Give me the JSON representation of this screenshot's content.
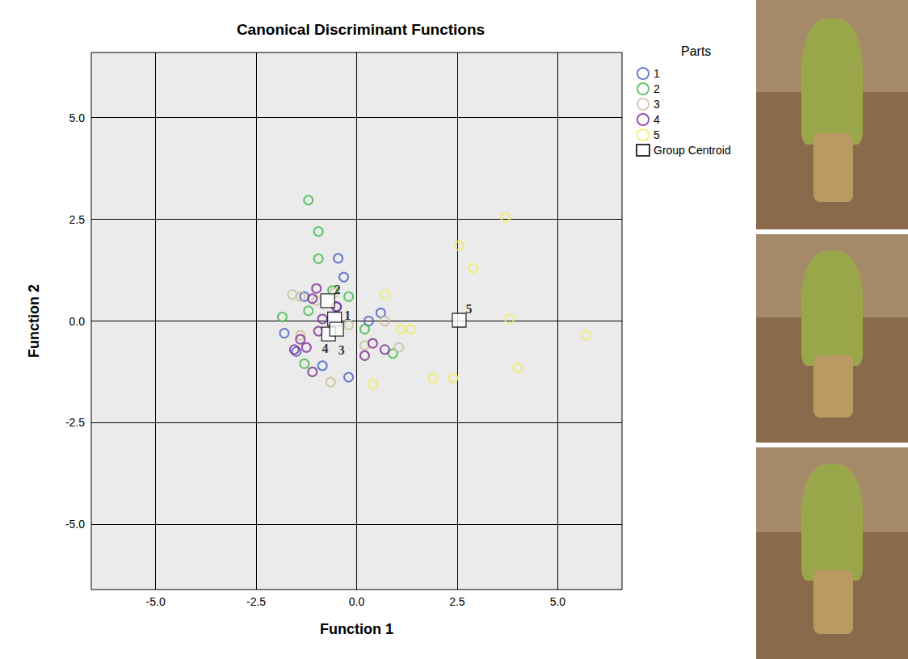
{
  "chart_data": {
    "type": "scatter",
    "title": "Canonical Discriminant Functions",
    "x_label": "Function 1",
    "y_label": "Function 2",
    "legend_title": "Parts",
    "legend": "right",
    "grid": true,
    "xlim": [
      -6.6,
      6.6
    ],
    "ylim": [
      -6.6,
      6.6
    ],
    "xticks": [
      {
        "value": -5,
        "label": "-5.0"
      },
      {
        "value": -2.5,
        "label": "-2.5"
      },
      {
        "value": 0,
        "label": "0.0"
      },
      {
        "value": 2.5,
        "label": "2.5"
      },
      {
        "value": 5,
        "label": "5.0"
      }
    ],
    "yticks": [
      {
        "value": -5,
        "label": "-5.0"
      },
      {
        "value": -2.5,
        "label": "-2.5"
      },
      {
        "value": 0,
        "label": "0.0"
      },
      {
        "value": 2.5,
        "label": "2.5"
      },
      {
        "value": 5,
        "label": "5.0"
      }
    ],
    "series": [
      {
        "name": "1",
        "color": "#4a5fc1",
        "marker": "open_circle",
        "x": [
          -0.46,
          -0.32,
          -1.3,
          -1.8,
          -0.85,
          -0.2,
          0.3,
          0.6,
          -0.5,
          -1.5
        ],
        "y": [
          1.54,
          1.08,
          0.6,
          -0.3,
          -1.1,
          -1.38,
          0.0,
          0.2,
          0.35,
          -0.75
        ]
      },
      {
        "name": "2",
        "color": "#3dbb4a",
        "marker": "open_circle",
        "x": [
          -1.2,
          -0.95,
          -0.95,
          -1.85,
          -1.2,
          -0.2,
          0.2,
          0.9,
          -1.3,
          -0.6
        ],
        "y": [
          2.97,
          2.2,
          1.53,
          0.1,
          0.25,
          0.6,
          -0.2,
          -0.8,
          -1.05,
          0.75
        ]
      },
      {
        "name": "3",
        "color": "#c9c09c",
        "marker": "open_circle",
        "x": [
          -1.6,
          -1.4,
          -0.65,
          -1.4,
          0.7,
          1.05,
          0.2,
          -0.2,
          -0.55,
          -1.0
        ],
        "y": [
          0.65,
          0.6,
          -1.5,
          -0.35,
          0.0,
          -0.65,
          -0.6,
          -0.1,
          0.7,
          0.5
        ]
      },
      {
        "name": "4",
        "color": "#7b2d8e",
        "marker": "open_circle",
        "x": [
          -1.0,
          -1.1,
          -0.85,
          -1.4,
          -1.55,
          -1.25,
          -1.1,
          0.2,
          0.4,
          0.7,
          -0.5,
          -0.95
        ],
        "y": [
          0.8,
          0.55,
          0.05,
          -0.45,
          -0.7,
          -0.65,
          -1.25,
          -0.85,
          -0.55,
          -0.7,
          0.35,
          -0.25
        ]
      },
      {
        "name": "5",
        "color": "#f2ec5e",
        "marker": "open_circle",
        "x": [
          3.7,
          2.55,
          2.9,
          0.7,
          1.1,
          1.35,
          3.8,
          5.7,
          4.0,
          1.9,
          2.4,
          0.4
        ],
        "y": [
          2.55,
          1.85,
          1.3,
          0.65,
          -0.2,
          -0.2,
          0.05,
          -0.35,
          -1.15,
          -1.4,
          -1.4,
          -1.55
        ]
      },
      {
        "name": "Group Centroid",
        "color": "#000000",
        "marker": "square",
        "labels": [
          "1",
          "2",
          "3",
          "4",
          "5"
        ],
        "x": [
          -0.55,
          -0.72,
          -0.7,
          -0.5,
          2.55
        ],
        "y": [
          0.05,
          0.5,
          -0.32,
          -0.2,
          0.02
        ]
      }
    ]
  }
}
